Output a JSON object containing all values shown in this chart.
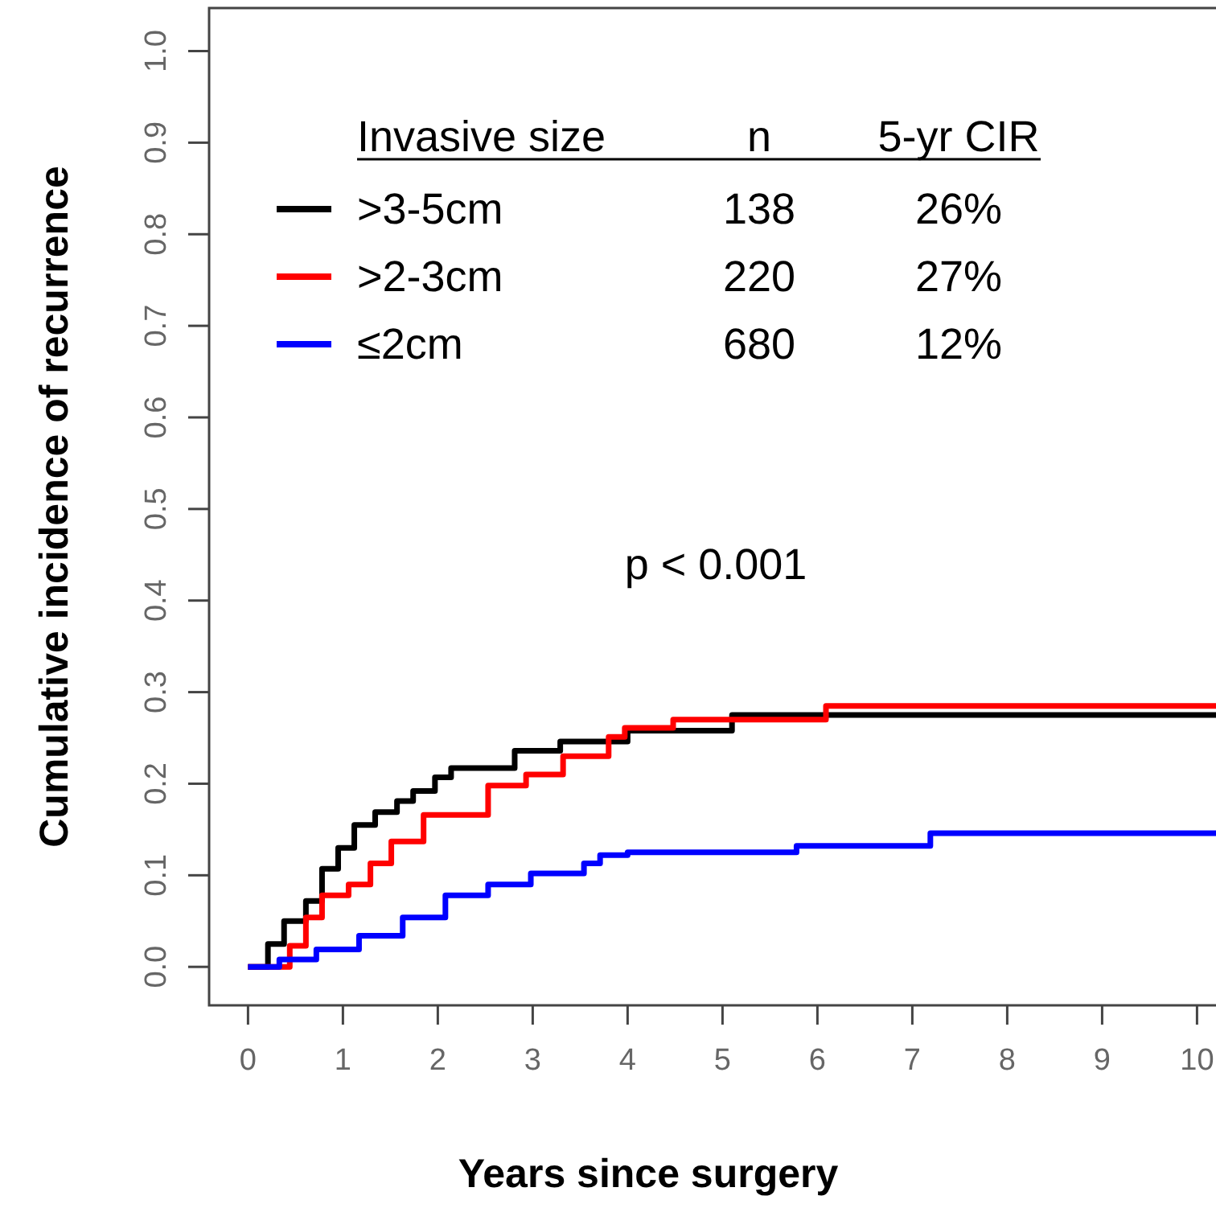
{
  "chart_data": {
    "type": "step",
    "xlabel": "Years since surgery",
    "ylabel": "Cumulative incidence of recurrence",
    "legend_title": "Invasive size",
    "legend": "top left",
    "xlim": [
      -0.41,
      10.2
    ],
    "ylim": [
      -0.042,
      1.047
    ],
    "xticks": [
      0,
      1,
      2,
      3,
      4,
      5,
      6,
      7,
      8,
      9,
      10
    ],
    "yticks": [
      {
        "value": 0,
        "label": "0.0"
      },
      0.1,
      0.2,
      0.3,
      0.4,
      0.5,
      0.6,
      0.7,
      0.8,
      0.9,
      {
        "value": 1,
        "label": "1.0"
      }
    ],
    "series": [
      {
        "name": ">3-5cm",
        "color": "#000000",
        "x": [
          0,
          0.21,
          0.38,
          0.61,
          0.78,
          0.95,
          1.12,
          1.34,
          1.57,
          1.74,
          1.97,
          2.14,
          2.81,
          3.29,
          4.0,
          5.1,
          10.2
        ],
        "values": [
          0,
          0.025,
          0.05,
          0.072,
          0.107,
          0.13,
          0.155,
          0.169,
          0.181,
          0.192,
          0.207,
          0.217,
          0.236,
          0.246,
          0.258,
          0.275,
          0.275
        ]
      },
      {
        "name": ">2-3cm",
        "color": "#ff0000",
        "x": [
          0,
          0.44,
          0.61,
          0.78,
          1.06,
          1.29,
          1.51,
          1.85,
          2.53,
          2.93,
          3.32,
          3.8,
          3.97,
          4.48,
          6.09,
          10.2
        ],
        "values": [
          0,
          0.023,
          0.054,
          0.078,
          0.09,
          0.113,
          0.137,
          0.166,
          0.198,
          0.21,
          0.23,
          0.251,
          0.261,
          0.27,
          0.285,
          0.285
        ]
      },
      {
        "name": "≤2cm",
        "color": "#0000ff",
        "x": [
          0,
          0.33,
          0.72,
          1.17,
          1.63,
          2.08,
          2.53,
          2.98,
          3.54,
          3.71,
          4.0,
          5.78,
          7.19,
          10.2
        ],
        "values": [
          0,
          0.008,
          0.019,
          0.034,
          0.054,
          0.078,
          0.09,
          0.102,
          0.113,
          0.122,
          0.125,
          0.132,
          0.146,
          0.146
        ]
      }
    ],
    "annotations": [
      "n",
      "5-yr CIR",
      "138",
      "26%",
      "220",
      "27%",
      "680",
      "12%",
      "p < 0.001"
    ]
  }
}
